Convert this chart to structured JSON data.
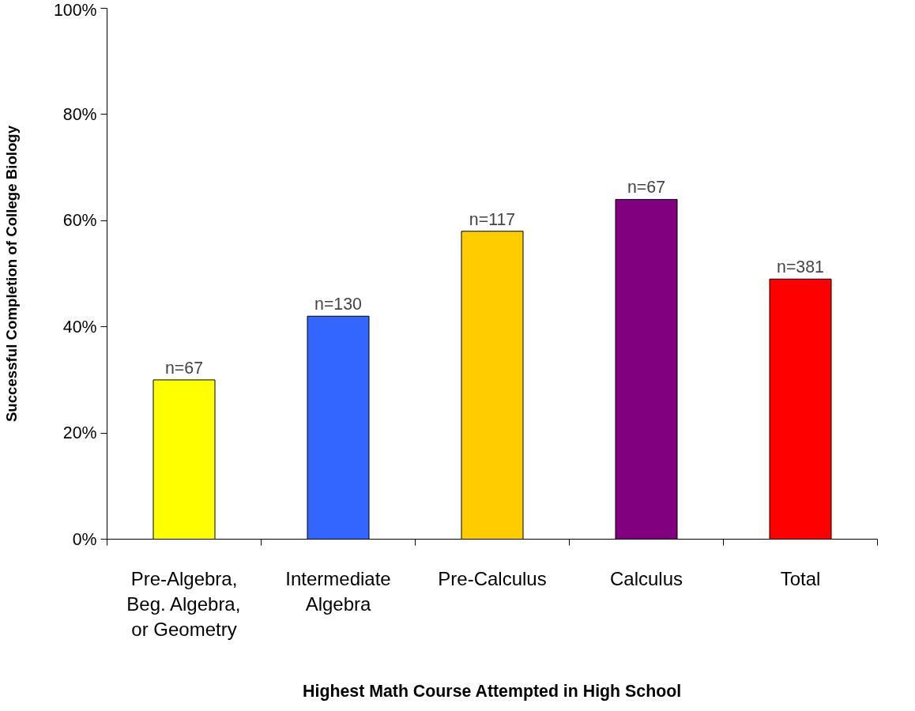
{
  "chart_data": {
    "type": "bar",
    "xlabel": "Highest Math Course Attempted in High School",
    "ylabel": "Successful Completion of College Biology",
    "categories": [
      "Pre-Algebra,\nBeg. Algebra,\nor Geometry",
      "Intermediate\nAlgebra",
      "Pre-Calculus",
      "Calculus",
      "Total"
    ],
    "values": [
      30,
      42,
      58,
      64,
      49
    ],
    "colors": [
      "#ffff00",
      "#3366ff",
      "#ffcc00",
      "#800080",
      "#ff0000"
    ],
    "ylim": [
      0,
      100
    ],
    "yticks": [
      {
        "value": 0,
        "label": "0%"
      },
      {
        "value": 20,
        "label": "20%"
      },
      {
        "value": 40,
        "label": "40%"
      },
      {
        "value": 60,
        "label": "60%"
      },
      {
        "value": 80,
        "label": "80%"
      },
      {
        "value": 100,
        "label": "100%"
      }
    ],
    "annotations": [
      {
        "text": "n=67",
        "x": "Pre-Algebra,\nBeg. Algebra,\nor Geometry",
        "y": 30
      },
      {
        "text": "n=130",
        "x": "Intermediate\nAlgebra",
        "y": 42
      },
      {
        "text": "n=117",
        "x": "Pre-Calculus",
        "y": 58
      },
      {
        "text": "n=67",
        "x": "Calculus",
        "y": 64
      },
      {
        "text": "n=381",
        "x": "Total",
        "y": 49
      }
    ],
    "grid": false
  }
}
